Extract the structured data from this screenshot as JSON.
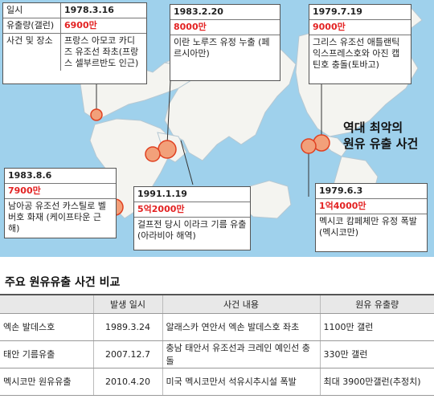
{
  "incidents": [
    {
      "date": "1978.3.16",
      "amount": "6900만",
      "description": "프랑스 아모코 카디즈 유조선 좌초(프랑스 셀부르반도 인근)",
      "labels": {
        "date": "일시",
        "amount": "유출량(갤런)",
        "description": "사건 및 장소"
      }
    },
    {
      "date": "1983.2.20",
      "amount": "8000만",
      "description": "이란 노루즈 유정 누출 (페르시아만)"
    },
    {
      "date": "1979.7.19",
      "amount": "9000만",
      "description": "그리스 유조선 애틀랜틱 익스프레스호와 아진 캡틴호 충돌(토바고)"
    },
    {
      "date": "1983.8.6",
      "amount": "7900만",
      "description": "남아공 유조선 카스틸로 벨버호 화재 (케이프타운 근해)"
    },
    {
      "date": "1991.1.19",
      "amount": "5억2000만",
      "description": "걸프전 당시 이라크 기름 유출(아라비아 해역)"
    },
    {
      "date": "1979.6.3",
      "amount": "1억4000만",
      "description": "멕시코 캄페체만 유정 폭발(멕시코만)"
    }
  ],
  "map_title": [
    "역대 최악의",
    "원유 유출 사건"
  ],
  "table": {
    "title": "주요 원유유출 사건 비교",
    "headers": [
      "",
      "발생 일시",
      "사건 내용",
      "원유 유출량"
    ],
    "rows": [
      [
        "엑손 발데스호",
        "1989.3.24",
        "알래스카 연안서 엑손 발데스호 좌초",
        "1100만 갤런"
      ],
      [
        "태안 기름유출",
        "2007.12.7",
        "충남 태안서 유조선과 크레인 예인선 충돌",
        "330만 갤런"
      ],
      [
        "멕시코만 원유유출",
        "2010.4.20",
        "미국 멕시코만서 석유시추시설 폭발",
        "최대 3900만갤런(추정치)"
      ]
    ]
  },
  "colors": {
    "sea": "#9fd1ec",
    "land": "#f4f4f0",
    "amount": "#e32222",
    "marker": "#f2a07a",
    "marker_stroke": "#e04020"
  }
}
